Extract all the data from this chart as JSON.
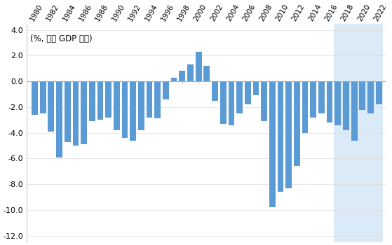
{
  "years": [
    1980,
    1981,
    1982,
    1983,
    1984,
    1985,
    1986,
    1987,
    1988,
    1989,
    1990,
    1991,
    1992,
    1993,
    1994,
    1995,
    1996,
    1997,
    1998,
    1999,
    2000,
    2001,
    2002,
    2003,
    2004,
    2005,
    2006,
    2007,
    2008,
    2009,
    2010,
    2011,
    2012,
    2013,
    2014,
    2015,
    2016,
    2017,
    2018,
    2019,
    2020,
    2021,
    2022
  ],
  "values": [
    -2.6,
    -2.5,
    -3.9,
    -5.9,
    -4.7,
    -5.0,
    -4.9,
    -3.1,
    -3.0,
    -2.8,
    -3.8,
    -4.4,
    -4.6,
    -3.8,
    -2.8,
    -2.9,
    -1.4,
    0.3,
    0.8,
    1.3,
    2.3,
    1.2,
    -1.5,
    -3.3,
    -3.4,
    -2.5,
    -1.8,
    -1.1,
    -3.1,
    -9.8,
    -8.6,
    -8.3,
    -6.6,
    -4.0,
    -2.8,
    -2.5,
    -3.2,
    -3.4,
    -3.8,
    -4.6,
    -2.2,
    -2.5,
    -1.8
  ],
  "bar_color": "#5B9BD5",
  "highlight_start": 2016.5,
  "highlight_end": 2022.5,
  "highlight_color": "#DAEAF7",
  "ylabel_text": "(%, 명목 GDP 대비)",
  "ylim": [
    -12.5,
    4.5
  ],
  "yticks": [
    4.0,
    2.0,
    0.0,
    -2.0,
    -4.0,
    -6.0,
    -8.0,
    -10.0,
    -12.0
  ],
  "xtick_years": [
    1980,
    1982,
    1984,
    1986,
    1988,
    1990,
    1992,
    1994,
    1996,
    1998,
    2000,
    2002,
    2004,
    2006,
    2008,
    2010,
    2012,
    2014,
    2016,
    2018,
    2020,
    2022
  ],
  "background_color": "#FFFFFF",
  "bar_width": 0.75
}
